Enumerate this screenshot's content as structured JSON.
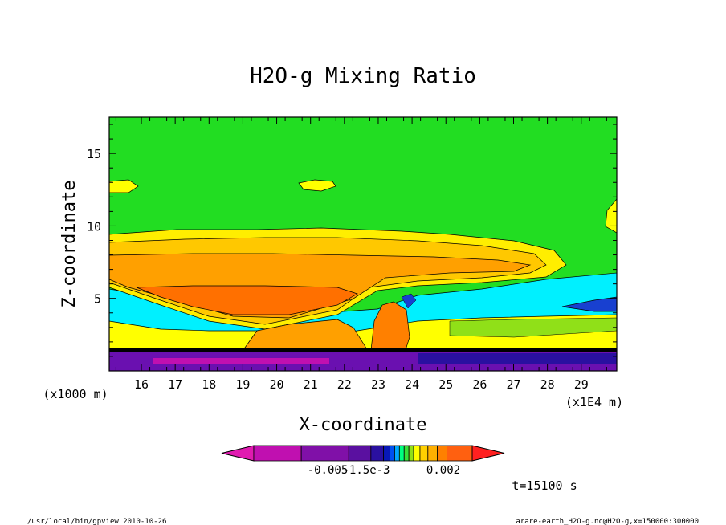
{
  "chart_data": {
    "type": "heatmap",
    "title": "H2O-g Mixing Ratio",
    "xlabel": "X-coordinate",
    "ylabel": "Z-coordinate",
    "x_unit_label": "(x1E4 m)",
    "y_unit_label": "(x1000 m)",
    "x_ticks": [
      "16",
      "17",
      "18",
      "19",
      "20",
      "21",
      "22",
      "23",
      "24",
      "25",
      "26",
      "27",
      "28",
      "29"
    ],
    "y_ticks": [
      "5",
      "10",
      "15"
    ],
    "xlim": [
      15.05,
      30.05
    ],
    "ylim": [
      0,
      17.5
    ],
    "colorbar": {
      "labels": [
        "-0.005",
        "-1.5e-3",
        "0.002"
      ],
      "colors": [
        "#e01ab0",
        "#c010b0",
        "#8010a8",
        "#5a10a0",
        "#2a10a0",
        "#0818b8",
        "#0050f0",
        "#00a8ff",
        "#00ff80",
        "#38e038",
        "#90e018",
        "#ffff00",
        "#ffd000",
        "#ffb000",
        "#ff8000",
        "#ff6010",
        "#ff2020"
      ]
    },
    "time_label": "t=15100 s",
    "footer_left": "/usr/local/bin/gpview  2010-10-26",
    "footer_right": "arare-earth_H2O-g.nc@H2O-g,x=150000:300000"
  }
}
